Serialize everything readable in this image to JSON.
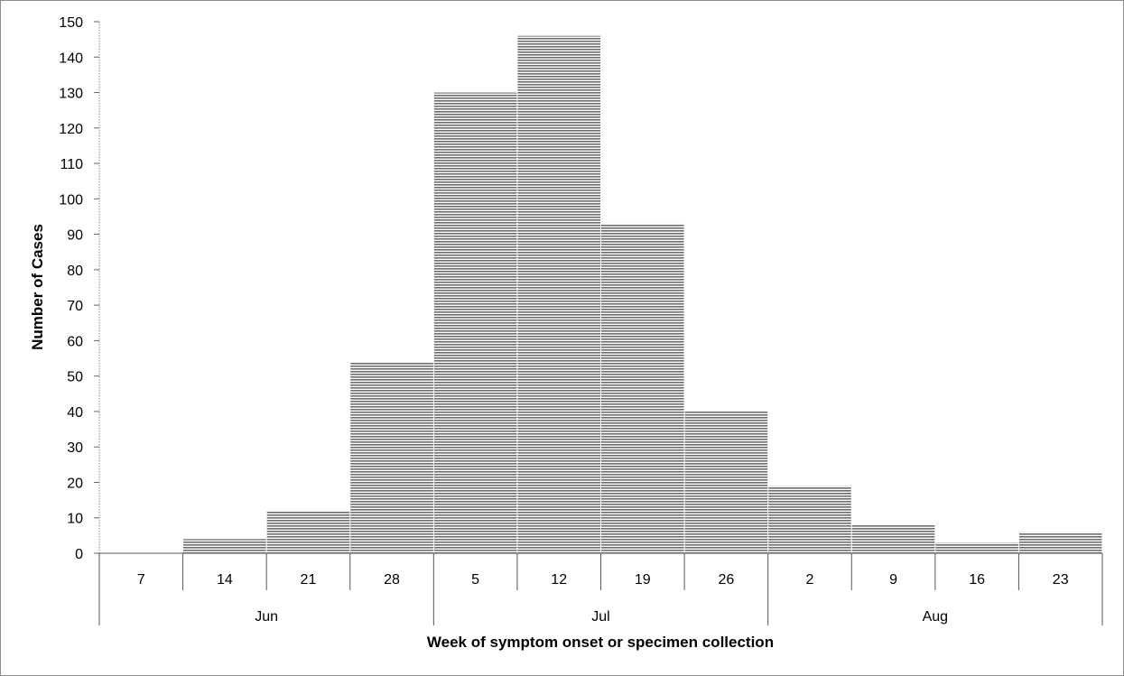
{
  "chart_data": {
    "type": "bar",
    "ylabel": "Number of Cases",
    "xlabel": "Week of symptom onset or specimen collection",
    "ylim": [
      0,
      150
    ],
    "yticks": [
      0,
      10,
      20,
      30,
      40,
      50,
      60,
      70,
      80,
      90,
      100,
      110,
      120,
      130,
      140,
      150
    ],
    "categories": [
      "7",
      "14",
      "21",
      "28",
      "5",
      "12",
      "19",
      "26",
      "2",
      "9",
      "16",
      "23"
    ],
    "groups": [
      {
        "label": "Jun",
        "count": 4
      },
      {
        "label": "Jul",
        "count": 4
      },
      {
        "label": "Aug",
        "count": 4
      }
    ],
    "values": [
      0,
      4,
      12,
      54,
      130,
      146,
      93,
      40,
      19,
      8,
      3,
      6
    ],
    "grid": false,
    "legend": "none",
    "bar_fill": "horizontal-stripes",
    "bar_color": "#6e6e6e"
  }
}
